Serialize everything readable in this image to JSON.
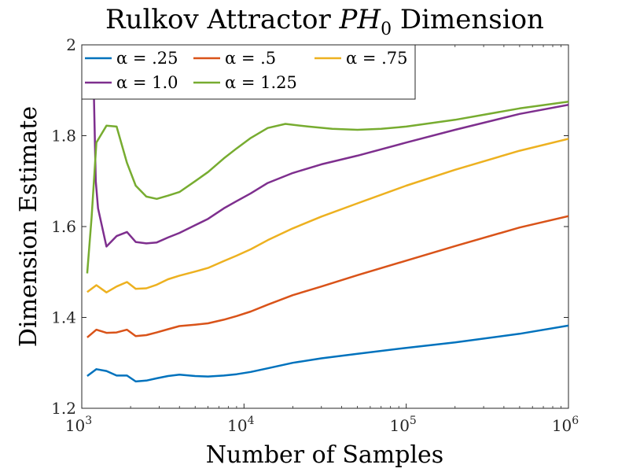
{
  "chart_data": {
    "type": "line",
    "title_prefix": "Rulkov Attractor ",
    "title_symbol": "PH",
    "title_subscript": "0",
    "title_suffix": " Dimension",
    "xlabel": "Number of Samples",
    "ylabel": "Dimension Estimate",
    "x_scale": "log",
    "xlim": [
      1000,
      1000000
    ],
    "ylim": [
      1.2,
      2.0
    ],
    "x_ticks": [
      {
        "value": 1000,
        "base": "10",
        "exp": "3"
      },
      {
        "value": 10000,
        "base": "10",
        "exp": "4"
      },
      {
        "value": 100000,
        "base": "10",
        "exp": "5"
      },
      {
        "value": 1000000,
        "base": "10",
        "exp": "6"
      }
    ],
    "y_ticks": [
      {
        "value": 1.2,
        "label": "1.2"
      },
      {
        "value": 1.4,
        "label": "1.4"
      },
      {
        "value": 1.6,
        "label": "1.6"
      },
      {
        "value": 1.8,
        "label": "1.8"
      },
      {
        "value": 2.0,
        "label": "2"
      }
    ],
    "grid": false,
    "legend_position": "top-left",
    "series": [
      {
        "name": "α = .25",
        "color": "#0072BD",
        "x": [
          1080,
          1230,
          1420,
          1640,
          1900,
          2150,
          2500,
          2900,
          3400,
          4000,
          5000,
          6000,
          7500,
          9000,
          11000,
          14000,
          20000,
          30000,
          50000,
          100000,
          200000,
          500000,
          1000000
        ],
        "y": [
          1.271,
          1.286,
          1.282,
          1.272,
          1.272,
          1.259,
          1.261,
          1.266,
          1.271,
          1.274,
          1.271,
          1.27,
          1.272,
          1.275,
          1.28,
          1.288,
          1.3,
          1.31,
          1.32,
          1.333,
          1.345,
          1.364,
          1.382
        ]
      },
      {
        "name": "α = .5",
        "color": "#D95319",
        "x": [
          1080,
          1230,
          1420,
          1640,
          1900,
          2150,
          2500,
          2900,
          3400,
          4000,
          5000,
          6000,
          7500,
          9000,
          11000,
          14000,
          20000,
          30000,
          50000,
          100000,
          200000,
          500000,
          1000000
        ],
        "y": [
          1.356,
          1.373,
          1.366,
          1.367,
          1.373,
          1.359,
          1.361,
          1.367,
          1.374,
          1.381,
          1.384,
          1.387,
          1.395,
          1.403,
          1.413,
          1.428,
          1.449,
          1.468,
          1.493,
          1.525,
          1.557,
          1.598,
          1.623
        ]
      },
      {
        "name": "α = .75",
        "color": "#EDB120",
        "x": [
          1080,
          1230,
          1420,
          1640,
          1900,
          2150,
          2500,
          2900,
          3400,
          4000,
          5000,
          6000,
          7500,
          9000,
          11000,
          14000,
          20000,
          30000,
          50000,
          100000,
          200000,
          500000,
          1000000
        ],
        "y": [
          1.456,
          1.471,
          1.455,
          1.468,
          1.478,
          1.463,
          1.464,
          1.472,
          1.484,
          1.492,
          1.501,
          1.509,
          1.524,
          1.536,
          1.55,
          1.57,
          1.596,
          1.622,
          1.651,
          1.69,
          1.725,
          1.767,
          1.793
        ]
      },
      {
        "name": "α = 1.0",
        "color": "#7E2F8E",
        "x": [
          1180,
          1220,
          1260,
          1420,
          1640,
          1900,
          2150,
          2500,
          2900,
          3400,
          4000,
          5000,
          6000,
          7500,
          9000,
          11000,
          14000,
          20000,
          30000,
          50000,
          100000,
          200000,
          500000,
          1000000
        ],
        "y": [
          1.94,
          1.7,
          1.64,
          1.556,
          1.579,
          1.588,
          1.566,
          1.563,
          1.565,
          1.576,
          1.586,
          1.603,
          1.617,
          1.64,
          1.656,
          1.673,
          1.696,
          1.718,
          1.737,
          1.756,
          1.785,
          1.813,
          1.848,
          1.868
        ]
      },
      {
        "name": "α = 1.25",
        "color": "#77AC30",
        "x": [
          1080,
          1150,
          1230,
          1420,
          1640,
          1900,
          2150,
          2500,
          2900,
          3400,
          4000,
          5000,
          6000,
          7500,
          9000,
          11000,
          14000,
          18000,
          25000,
          35000,
          50000,
          70000,
          100000,
          200000,
          500000,
          1000000
        ],
        "y": [
          1.497,
          1.62,
          1.785,
          1.822,
          1.82,
          1.74,
          1.69,
          1.666,
          1.661,
          1.668,
          1.676,
          1.7,
          1.72,
          1.75,
          1.772,
          1.795,
          1.817,
          1.826,
          1.82,
          1.815,
          1.813,
          1.815,
          1.82,
          1.835,
          1.86,
          1.875
        ]
      }
    ]
  }
}
